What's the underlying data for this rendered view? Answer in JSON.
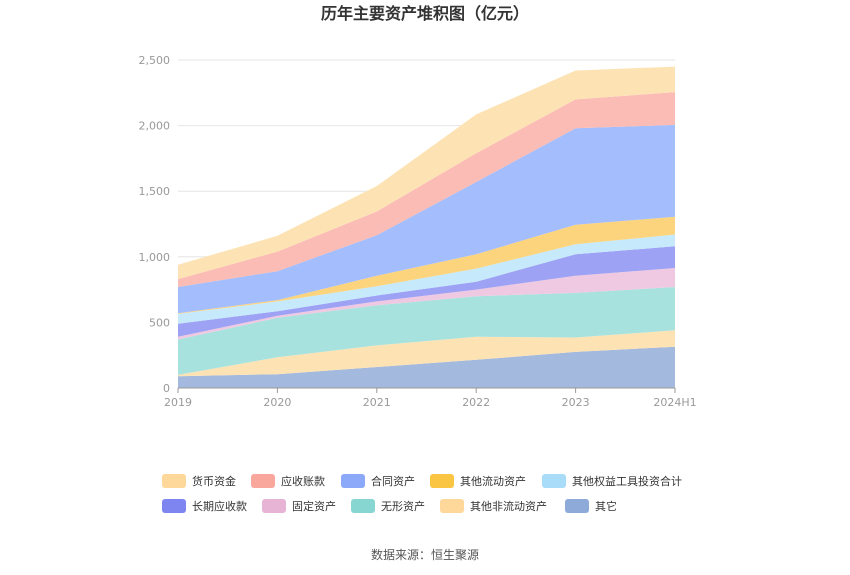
{
  "chart_data": {
    "type": "area",
    "title": "历年主要资产堆积图（亿元）",
    "categories": [
      "2019",
      "2020",
      "2021",
      "2022",
      "2023",
      "2024H1"
    ],
    "yticks": [
      "0",
      "500",
      "1,000",
      "1,500",
      "2,000",
      "2,500"
    ],
    "ylim": [
      0,
      2500
    ],
    "stacked": true,
    "grid": true,
    "legend_position": "bottom",
    "series": [
      {
        "name": "其它",
        "color": "#a3b9dd",
        "values": [
          90,
          105,
          160,
          215,
          275,
          315
        ]
      },
      {
        "name": "其他非流动资产",
        "color": "#fde3b4",
        "values": [
          10,
          130,
          165,
          175,
          110,
          125
        ]
      },
      {
        "name": "无形资产",
        "color": "#a8e2df",
        "values": [
          270,
          300,
          305,
          310,
          340,
          330
        ]
      },
      {
        "name": "固定资产",
        "color": "#efc9e1",
        "values": [
          20,
          15,
          30,
          50,
          130,
          145
        ]
      },
      {
        "name": "长期应收款",
        "color": "#9da2f5",
        "values": [
          100,
          35,
          45,
          60,
          165,
          165
        ]
      },
      {
        "name": "其他权益工具投资合计",
        "color": "#c6e9fb",
        "values": [
          75,
          75,
          70,
          100,
          75,
          90
        ]
      },
      {
        "name": "其他流动资产",
        "color": "#fcd47d",
        "values": [
          5,
          10,
          80,
          110,
          150,
          135
        ]
      },
      {
        "name": "合同资产",
        "color": "#a4bdfc",
        "values": [
          200,
          220,
          310,
          550,
          735,
          700
        ]
      },
      {
        "name": "应收账款",
        "color": "#fbbcb5",
        "values": [
          60,
          150,
          180,
          220,
          220,
          250
        ]
      },
      {
        "name": "货币资金",
        "color": "#fde3b4",
        "values": [
          110,
          120,
          195,
          295,
          220,
          195
        ]
      }
    ],
    "legend": [
      {
        "name": "货币资金",
        "color": "#fdd89a"
      },
      {
        "name": "应收账款",
        "color": "#f9a79d"
      },
      {
        "name": "合同资产",
        "color": "#8ca8f8"
      },
      {
        "name": "其他流动资产",
        "color": "#fbc544"
      },
      {
        "name": "其他权益工具投资合计",
        "color": "#a9dcf8"
      },
      {
        "name": "长期应收款",
        "color": "#7f85f0"
      },
      {
        "name": "固定资产",
        "color": "#e7b4d6"
      },
      {
        "name": "无形资产",
        "color": "#87d6d2"
      },
      {
        "name": "其他非流动资产",
        "color": "#fdd89a"
      },
      {
        "name": "其它",
        "color": "#8eaad8"
      }
    ]
  },
  "source": "数据来源：恒生聚源"
}
